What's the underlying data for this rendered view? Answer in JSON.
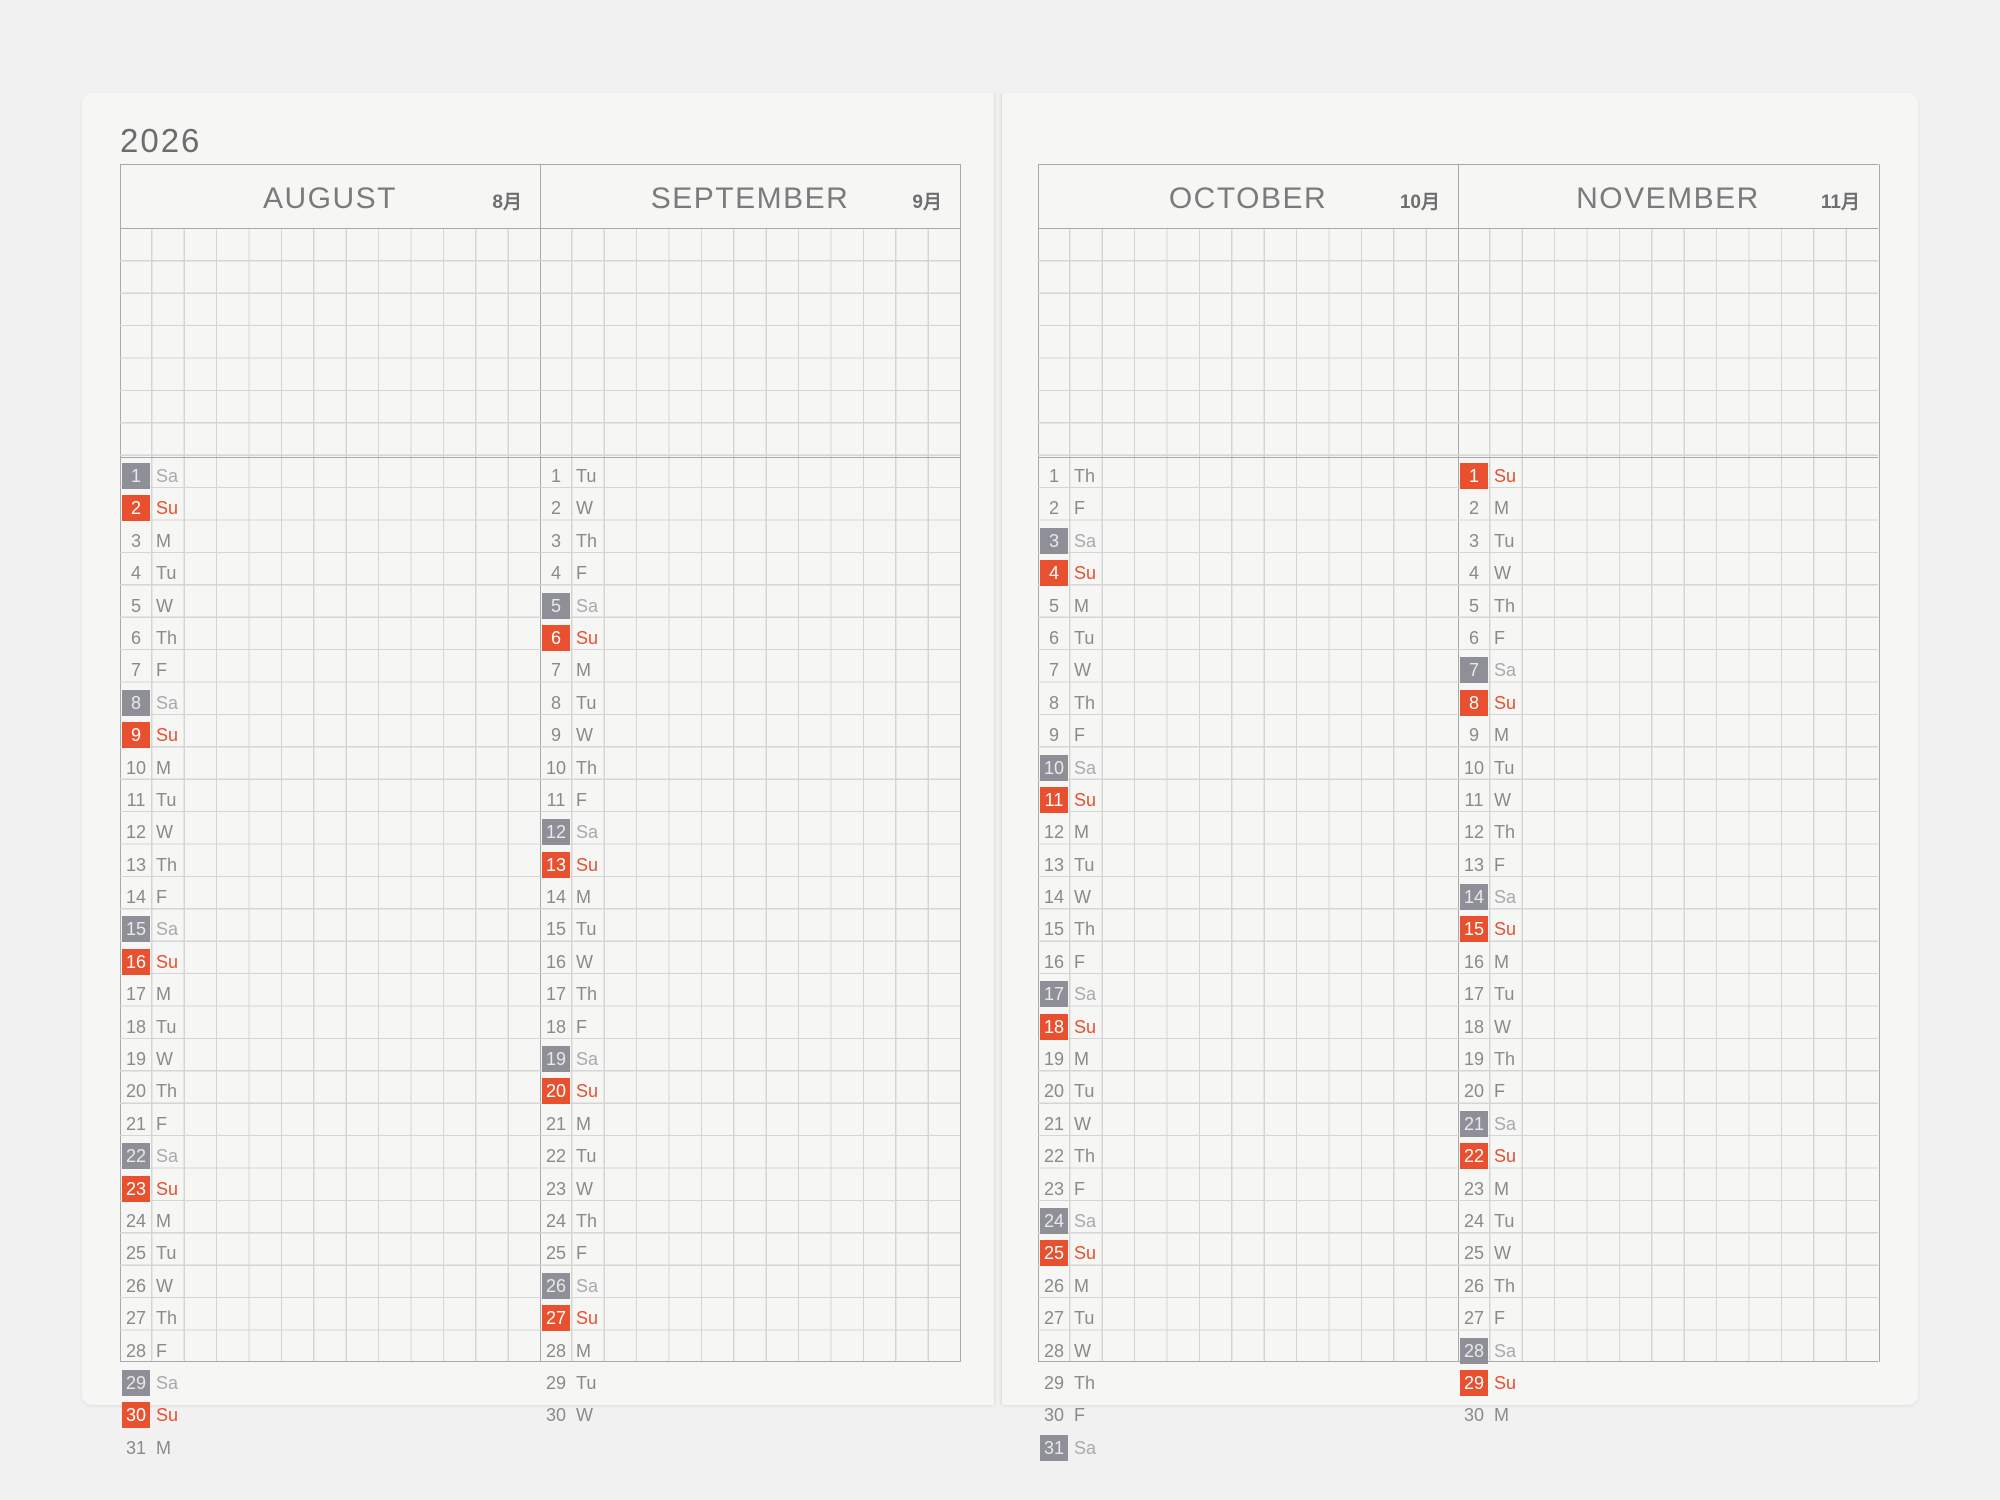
{
  "year": "2026",
  "months": [
    {
      "name": "AUGUST",
      "kanji": "8月",
      "start_dow": "Sa",
      "days": 31
    },
    {
      "name": "SEPTEMBER",
      "kanji": "9月",
      "start_dow": "Tu",
      "days": 30
    },
    {
      "name": "OCTOBER",
      "kanji": "10月",
      "start_dow": "Th",
      "days": 31
    },
    {
      "name": "NOVEMBER",
      "kanji": "11月",
      "start_dow": "Su",
      "days": 30
    }
  ],
  "weekday_labels": [
    "Su",
    "M",
    "Tu",
    "W",
    "Th",
    "F",
    "Sa"
  ],
  "colors": {
    "sunday": "#e8502f",
    "saturday": "#8f9097",
    "text": "#8a8a8a"
  }
}
